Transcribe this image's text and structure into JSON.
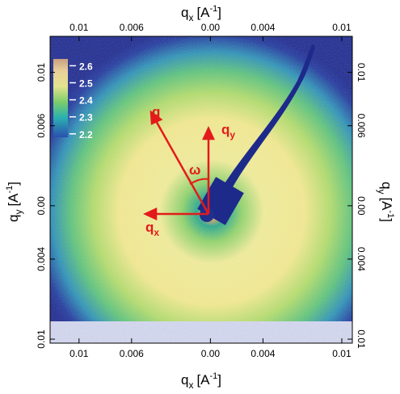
{
  "chart_data": {
    "type": "heatmap",
    "xlabel": {
      "symbol": "q",
      "sub": "x",
      "unit": "[A",
      "sup": "-1",
      "close": "]"
    },
    "ylabel": {
      "symbol": "q",
      "sub": "y",
      "unit": "[A",
      "sup": "-1",
      "close": "]"
    },
    "xlim": [
      -0.0122,
      0.0108
    ],
    "ylim": [
      -0.0103,
      0.0127
    ],
    "xticks": [
      {
        "value": -0.01,
        "label": "0.01"
      },
      {
        "value": -0.006,
        "label": "0.006"
      },
      {
        "value": 0,
        "label": "0.00"
      },
      0.004,
      0.01
    ],
    "yticks": [
      {
        "value": -0.01,
        "label": "0.01"
      },
      {
        "value": -0.004,
        "label": "0.004"
      },
      {
        "value": 0,
        "label": "0.00"
      },
      0.006,
      0.01
    ],
    "colorbar": {
      "clim": [
        2.18,
        2.64
      ],
      "ticks": [
        2.2,
        2.3,
        2.4,
        2.5,
        2.6
      ]
    },
    "annotations": {
      "q": "q",
      "qy": {
        "symbol": "q",
        "sub": "y"
      },
      "omega": "ω",
      "qx": {
        "symbol": "q",
        "sub": "x"
      }
    }
  }
}
